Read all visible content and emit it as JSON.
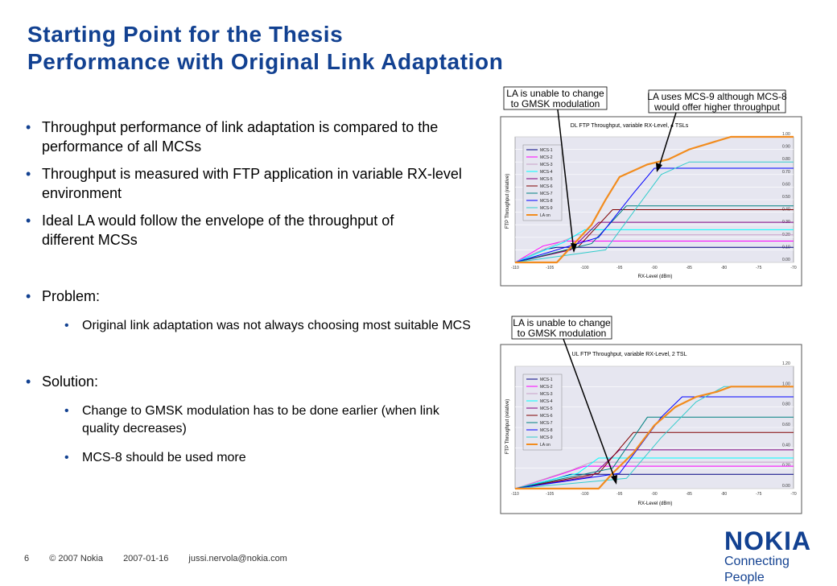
{
  "slide": {
    "title_line1": "Starting Point for the Thesis",
    "title_line2": "Performance with Original Link Adaptation",
    "bullets": [
      "Throughput performance of link adaptation is compared to the performance of all MCSs",
      "Throughput is measured with FTP application in variable RX-level environment",
      "Ideal LA would follow the envelope of the throughput of different MCSs",
      "Problem:",
      "Solution:"
    ],
    "sub_bullets": [
      "Original link adaptation was not always choosing most suitable MCS",
      "Change to GMSK modulation has to be done earlier (when link quality decreases)",
      "MCS-8 should be used more"
    ]
  },
  "annotations": {
    "top_left": [
      "LA is unable to change",
      "to GMSK modulation"
    ],
    "top_right": [
      "LA uses MCS-9 although MCS-8",
      "would offer higher throughput"
    ],
    "bottom": [
      "LA is unable to change",
      "to GMSK modulation"
    ]
  },
  "footer": {
    "page": "6",
    "copyright": "© 2007 Nokia",
    "date": "2007-01-16",
    "email": "jussi.nervola@nokia.com"
  },
  "logo": {
    "brand": "NOKIA",
    "tagline": "Connecting People"
  },
  "colors": {
    "title": "#124191",
    "la_line": "#f28c1e",
    "plot_bg": "#e6e6f0"
  },
  "chart_data": [
    {
      "type": "line",
      "title": "DL FTP Throughput, variable RX-Level, 4 TSLs",
      "xlabel": "RX-Level (dBm)",
      "ylabel": "FTP Throughput (relative)",
      "xlim": [
        -110,
        -70
      ],
      "ylim": [
        0,
        1.0
      ],
      "x_ticks": [
        "-110",
        "-105",
        "-100",
        "-95",
        "-90",
        "-85",
        "-80",
        "-75",
        "-70"
      ],
      "y_ticks": [
        "0.00",
        "0.10",
        "0.20",
        "0.30",
        "0.40",
        "0.50",
        "0.60",
        "0.70",
        "0.80",
        "0.90",
        "1.00"
      ],
      "series": [
        {
          "name": "MCS-1",
          "color": "#000080",
          "points": [
            [
              -110,
              0
            ],
            [
              -106,
              0.1
            ],
            [
              -104,
              0.12
            ],
            [
              -70,
              0.12
            ]
          ]
        },
        {
          "name": "MCS-2",
          "color": "#ff00ff",
          "points": [
            [
              -110,
              0
            ],
            [
              -106,
              0.13
            ],
            [
              -103,
              0.17
            ],
            [
              -70,
              0.17
            ]
          ]
        },
        {
          "name": "MCS-3",
          "color": "#c8a0c8",
          "points": [
            [
              -110,
              0
            ],
            [
              -104,
              0.15
            ],
            [
              -101,
              0.22
            ],
            [
              -70,
              0.22
            ]
          ]
        },
        {
          "name": "MCS-4",
          "color": "#00ffff",
          "points": [
            [
              -110,
              0
            ],
            [
              -103,
              0.16
            ],
            [
              -100,
              0.26
            ],
            [
              -70,
              0.26
            ]
          ]
        },
        {
          "name": "MCS-5",
          "color": "#800080",
          "points": [
            [
              -110,
              0
            ],
            [
              -102,
              0.1
            ],
            [
              -98,
              0.32
            ],
            [
              -70,
              0.32
            ]
          ]
        },
        {
          "name": "MCS-6",
          "color": "#800000",
          "points": [
            [
              -110,
              0
            ],
            [
              -101,
              0.12
            ],
            [
              -96,
              0.42
            ],
            [
              -70,
              0.42
            ]
          ]
        },
        {
          "name": "MCS-7",
          "color": "#008080",
          "points": [
            [
              -110,
              0
            ],
            [
              -99,
              0.15
            ],
            [
              -94,
              0.45
            ],
            [
              -70,
              0.45
            ]
          ]
        },
        {
          "name": "MCS-8",
          "color": "#0000ff",
          "points": [
            [
              -110,
              0
            ],
            [
              -98,
              0.2
            ],
            [
              -93,
              0.55
            ],
            [
              -90,
              0.75
            ],
            [
              -70,
              0.75
            ]
          ]
        },
        {
          "name": "MCS-9",
          "color": "#33cccc",
          "points": [
            [
              -110,
              0
            ],
            [
              -97,
              0.1
            ],
            [
              -93,
              0.4
            ],
            [
              -89,
              0.7
            ],
            [
              -85,
              0.8
            ],
            [
              -70,
              0.8
            ]
          ]
        },
        {
          "name": "LA on",
          "color": "#f28c1e",
          "points": [
            [
              -110,
              0
            ],
            [
              -104,
              0.0
            ],
            [
              -102,
              0.12
            ],
            [
              -99,
              0.3
            ],
            [
              -97,
              0.5
            ],
            [
              -95,
              0.68
            ],
            [
              -91,
              0.78
            ],
            [
              -88,
              0.82
            ],
            [
              -85,
              0.9
            ],
            [
              -82,
              0.95
            ],
            [
              -79,
              1.0
            ],
            [
              -70,
              1.0
            ]
          ]
        }
      ]
    },
    {
      "type": "line",
      "title": "UL FTP Throughput, variable RX-Level, 2 TSL",
      "xlabel": "RX-Level (dBm)",
      "ylabel": "FTP Throughput (relative)",
      "xlim": [
        -110,
        -70
      ],
      "ylim": [
        0,
        1.2
      ],
      "x_ticks": [
        "-110",
        "-105",
        "-100",
        "-95",
        "-90",
        "-85",
        "-80",
        "-75",
        "-70"
      ],
      "y_ticks": [
        "0.00",
        "0.20",
        "0.40",
        "0.60",
        "0.80",
        "1.00",
        "1.20"
      ],
      "series": [
        {
          "name": "MCS-1",
          "color": "#000080",
          "points": [
            [
              -110,
              0
            ],
            [
              -104,
              0.1
            ],
            [
              -102,
              0.14
            ],
            [
              -70,
              0.14
            ]
          ]
        },
        {
          "name": "MCS-2",
          "color": "#ff00ff",
          "points": [
            [
              -110,
              0
            ],
            [
              -103,
              0.15
            ],
            [
              -100,
              0.22
            ],
            [
              -70,
              0.22
            ]
          ]
        },
        {
          "name": "MCS-3",
          "color": "#c8a0c8",
          "points": [
            [
              -110,
              0
            ],
            [
              -102,
              0.18
            ],
            [
              -99,
              0.26
            ],
            [
              -70,
              0.26
            ]
          ]
        },
        {
          "name": "MCS-4",
          "color": "#00ffff",
          "points": [
            [
              -110,
              0
            ],
            [
              -101,
              0.15
            ],
            [
              -98,
              0.3
            ],
            [
              -70,
              0.3
            ]
          ]
        },
        {
          "name": "MCS-5",
          "color": "#800080",
          "points": [
            [
              -110,
              0
            ],
            [
              -99,
              0.12
            ],
            [
              -95,
              0.38
            ],
            [
              -70,
              0.38
            ]
          ]
        },
        {
          "name": "MCS-6",
          "color": "#800000",
          "points": [
            [
              -110,
              0
            ],
            [
              -98,
              0.15
            ],
            [
              -93,
              0.55
            ],
            [
              -70,
              0.55
            ]
          ]
        },
        {
          "name": "MCS-7",
          "color": "#008080",
          "points": [
            [
              -110,
              0
            ],
            [
              -96,
              0.2
            ],
            [
              -91,
              0.7
            ],
            [
              -70,
              0.7
            ]
          ]
        },
        {
          "name": "MCS-8",
          "color": "#0000ff",
          "points": [
            [
              -110,
              0
            ],
            [
              -95,
              0.15
            ],
            [
              -89,
              0.7
            ],
            [
              -86,
              0.9
            ],
            [
              -70,
              0.9
            ]
          ]
        },
        {
          "name": "MCS-9",
          "color": "#33cccc",
          "points": [
            [
              -110,
              0
            ],
            [
              -94,
              0.1
            ],
            [
              -89,
              0.5
            ],
            [
              -84,
              0.85
            ],
            [
              -80,
              1.0
            ],
            [
              -70,
              1.0
            ]
          ]
        },
        {
          "name": "LA on",
          "color": "#f28c1e",
          "points": [
            [
              -110,
              0
            ],
            [
              -98,
              0.0
            ],
            [
              -96,
              0.15
            ],
            [
              -93,
              0.35
            ],
            [
              -90,
              0.62
            ],
            [
              -87,
              0.8
            ],
            [
              -84,
              0.9
            ],
            [
              -81,
              0.95
            ],
            [
              -79,
              1.0
            ],
            [
              -70,
              1.0
            ]
          ]
        }
      ]
    }
  ]
}
